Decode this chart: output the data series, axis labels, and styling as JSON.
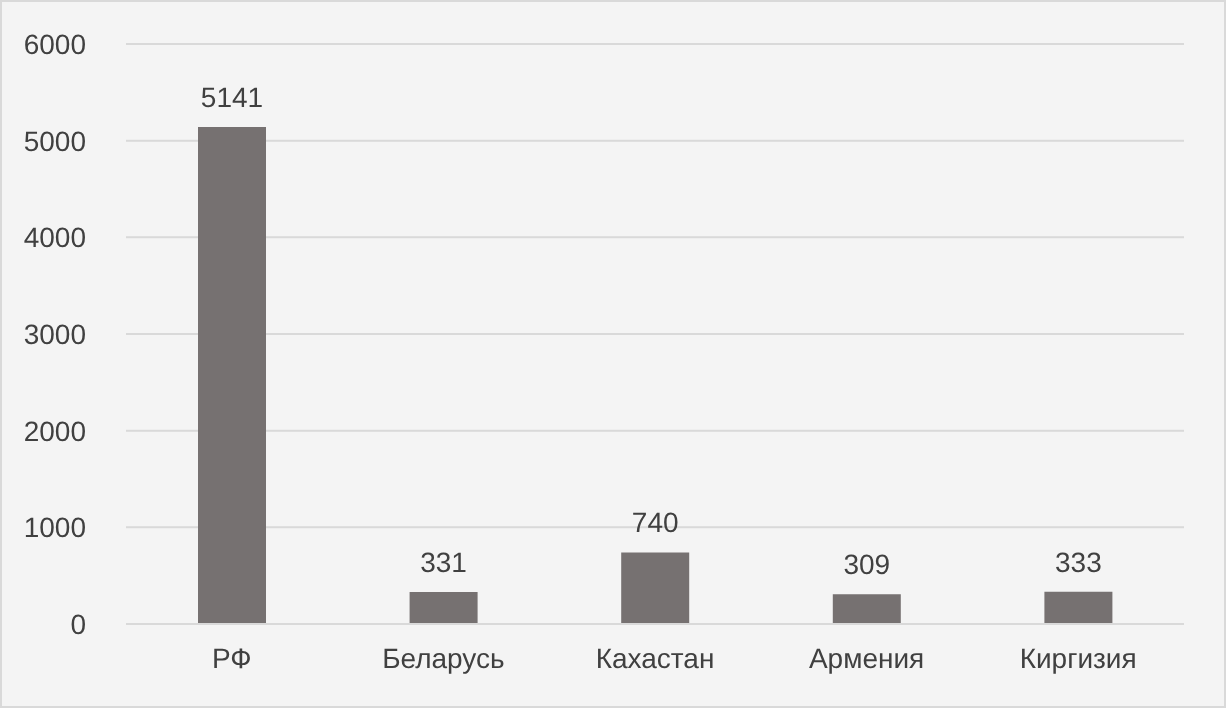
{
  "chart_data": {
    "type": "bar",
    "categories": [
      "РФ",
      "Беларусь",
      "Кахастан",
      "Армения",
      "Киргизия"
    ],
    "values": [
      5141,
      331,
      740,
      309,
      333
    ],
    "color": "#767171",
    "ylim": [
      0,
      6000
    ],
    "yticks": [
      0,
      1000,
      2000,
      3000,
      4000,
      5000,
      6000
    ],
    "grid": "y",
    "data_labels": true
  }
}
